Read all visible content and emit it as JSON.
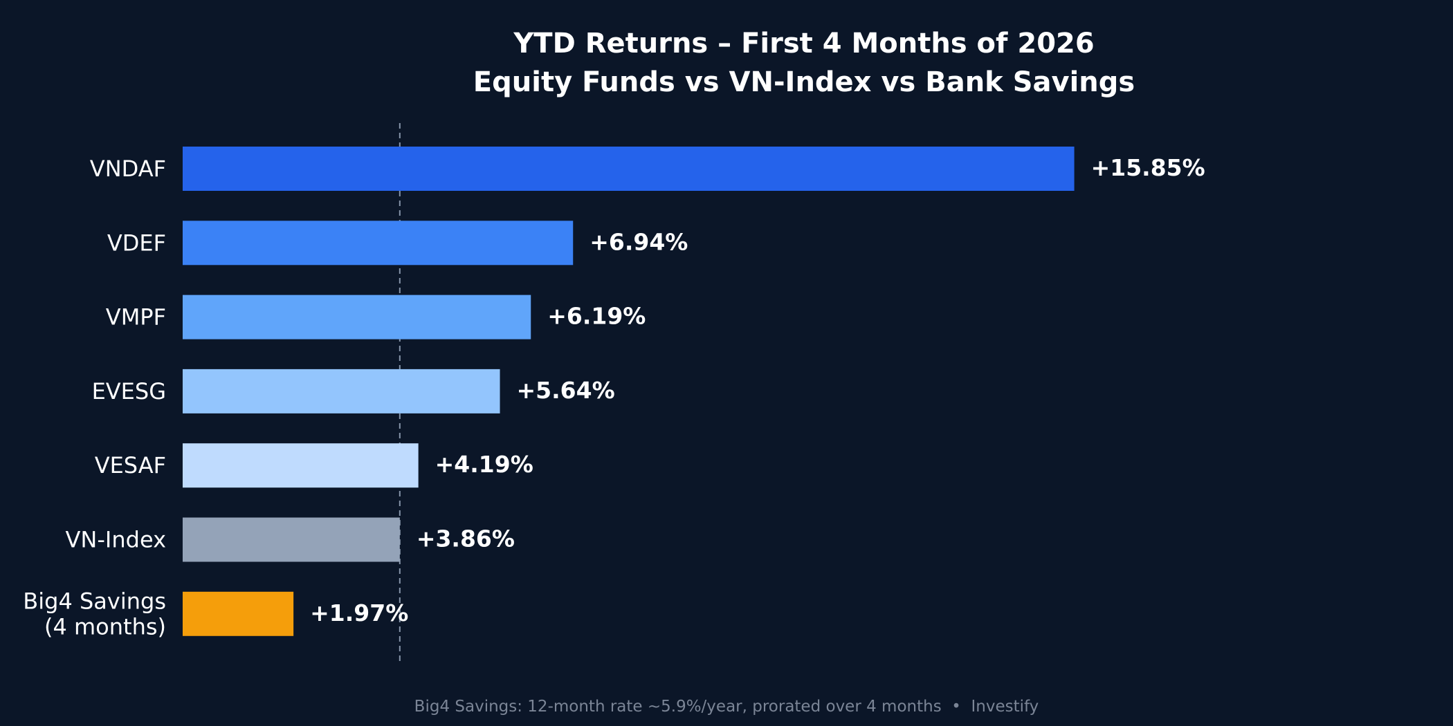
{
  "chart_data": {
    "type": "bar",
    "orientation": "horizontal",
    "title": "YTD Returns – First 4 Months of 2026",
    "subtitle": "Equity Funds vs VN-Index vs Bank Savings",
    "categories": [
      [
        "VNDAF"
      ],
      [
        "VDEF"
      ],
      [
        "VMPF"
      ],
      [
        "EVESG"
      ],
      [
        "VESAF"
      ],
      [
        "VN-Index"
      ],
      [
        "Big4 Savings",
        "(4 months)"
      ]
    ],
    "values": [
      15.85,
      6.94,
      6.19,
      5.64,
      4.19,
      3.86,
      1.97
    ],
    "value_labels": [
      "+15.85%",
      "+6.94%",
      "+6.19%",
      "+5.64%",
      "+4.19%",
      "+3.86%",
      "+1.97%"
    ],
    "colors": [
      "#2563eb",
      "#3b82f6",
      "#60a5fa",
      "#93c5fd",
      "#bfdbfe",
      "#94a3b8",
      "#f59e0b"
    ],
    "reference_line": {
      "value": 3.86,
      "style": "dashed",
      "color": "#94a3b8"
    },
    "xlim": [
      0,
      20
    ],
    "grid": false,
    "legend": "none",
    "xlabel": "",
    "ylabel": "",
    "footnote": "Big4 Savings: 12-month rate ~5.9%/year, prorated over 4 months  •  Investify"
  }
}
